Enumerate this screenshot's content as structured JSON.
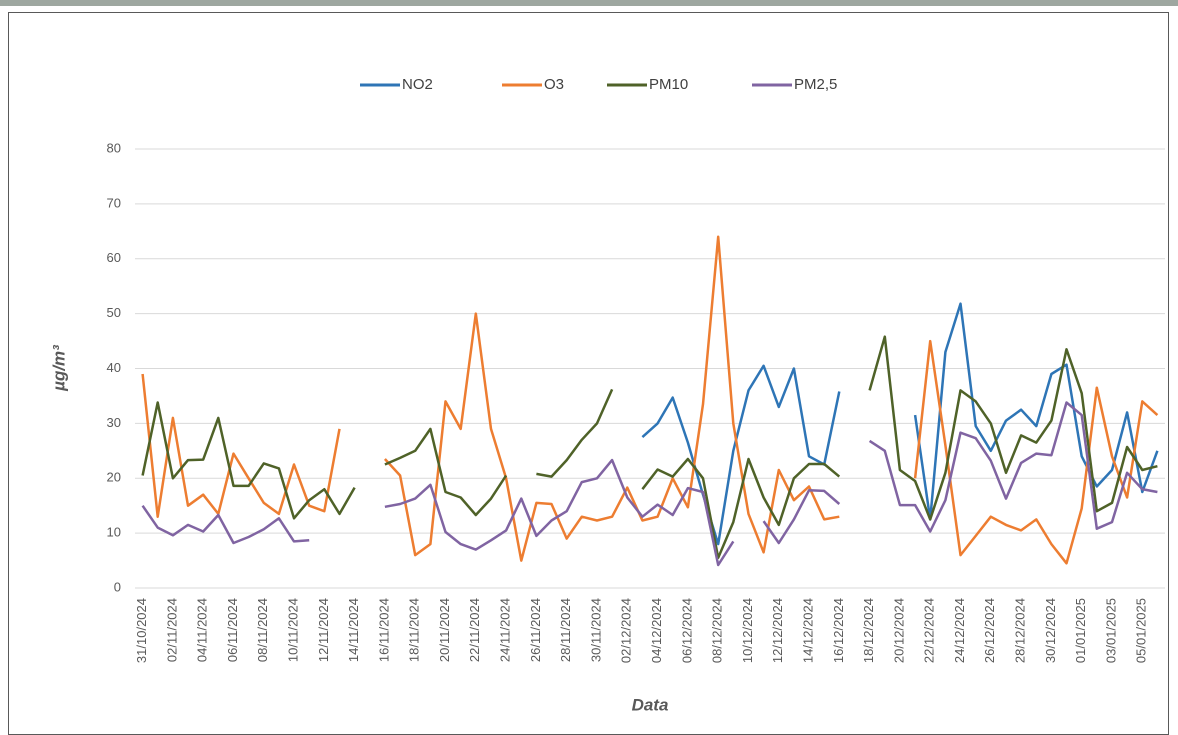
{
  "chart_data": {
    "type": "line",
    "x_label": "Data",
    "y_label": "µg/m³",
    "categories": [
      "31/10/2024",
      null,
      "02/11/2024",
      null,
      "04/11/2024",
      null,
      "06/11/2024",
      null,
      "08/11/2024",
      null,
      "10/11/2024",
      null,
      "12/11/2024",
      null,
      "14/11/2024",
      null,
      "16/11/2024",
      null,
      "18/11/2024",
      null,
      "20/11/2024",
      null,
      "22/11/2024",
      null,
      "24/11/2024",
      null,
      "26/11/2024",
      null,
      "28/11/2024",
      null,
      "30/11/2024",
      null,
      "02/12/2024",
      null,
      "04/12/2024",
      null,
      "06/12/2024",
      null,
      "08/12/2024",
      null,
      "10/12/2024",
      null,
      "12/12/2024",
      null,
      "14/12/2024",
      null,
      "16/12/2024",
      null,
      "18/12/2024",
      null,
      "20/12/2024",
      null,
      "22/12/2024",
      null,
      "24/12/2024",
      null,
      "26/12/2024",
      null,
      "28/12/2024",
      null,
      "30/12/2024",
      null,
      "01/01/2025",
      null,
      "03/01/2025",
      null,
      "05/01/2025",
      null
    ],
    "series": [
      {
        "name": "NO2",
        "color": "#2e75b6",
        "values": [
          null,
          null,
          null,
          null,
          null,
          null,
          null,
          null,
          null,
          null,
          null,
          null,
          null,
          null,
          null,
          null,
          null,
          null,
          null,
          null,
          null,
          null,
          null,
          null,
          null,
          null,
          null,
          null,
          null,
          null,
          null,
          null,
          null,
          27.5,
          30,
          34.7,
          26.5,
          17,
          8,
          25,
          36,
          40.5,
          33,
          40,
          24,
          22.5,
          35.8,
          null,
          null,
          null,
          null,
          31.5,
          12.5,
          43,
          51.8,
          29.5,
          25,
          30.5,
          32.5,
          29.5,
          39,
          40.7,
          24,
          18.5,
          21.5,
          32,
          17.5,
          25
        ]
      },
      {
        "name": "O3",
        "color": "#ed7d31",
        "values": [
          39,
          13,
          31,
          15,
          17,
          13.5,
          24.5,
          20,
          15.5,
          13.5,
          22.5,
          15,
          14,
          29,
          null,
          null,
          23.5,
          20.5,
          6,
          8,
          34,
          29,
          50,
          29,
          20,
          5,
          15.5,
          15.3,
          9,
          13,
          12.3,
          13,
          18.3,
          12.3,
          13,
          20,
          14.7,
          33.5,
          64,
          30,
          13.5,
          6.5,
          21.5,
          16,
          18.5,
          12.5,
          13,
          null,
          null,
          null,
          null,
          20,
          45,
          26,
          6,
          9.5,
          13,
          11.5,
          10.5,
          12.5,
          8,
          4.5,
          14.5,
          36.5,
          24,
          16.5,
          34,
          31.5
        ]
      },
      {
        "name": "PM10",
        "color": "#4f6228",
        "values": [
          20.5,
          33.8,
          20,
          23.3,
          23.4,
          31,
          18.6,
          18.6,
          22.7,
          21.8,
          12.7,
          16,
          18,
          13.5,
          18.3,
          null,
          22.5,
          23.7,
          25,
          29,
          17.5,
          16.5,
          13.3,
          16.3,
          20.5,
          null,
          20.8,
          20.3,
          23.3,
          27,
          30,
          36.2,
          null,
          18,
          21.6,
          20.3,
          23.5,
          20,
          5.5,
          12,
          23.5,
          16.5,
          11.5,
          20,
          22.6,
          22.6,
          20.3,
          null,
          36,
          45.8,
          21.5,
          19.5,
          12.5,
          21,
          36,
          34,
          30,
          21,
          27.8,
          26.5,
          30.5,
          43.5,
          35.5,
          14,
          15.5,
          25.7,
          21.5,
          22.2
        ]
      },
      {
        "name": "PM2,5",
        "color": "#8064a2",
        "values": [
          15,
          11,
          9.6,
          11.5,
          10.3,
          13.3,
          8.2,
          9.3,
          10.7,
          12.7,
          8.5,
          8.7,
          null,
          null,
          null,
          null,
          14.8,
          15.3,
          16.3,
          18.8,
          10.2,
          8,
          7,
          8.7,
          10.5,
          16.3,
          9.5,
          12.3,
          14,
          19.3,
          20,
          23.3,
          16.5,
          13,
          15.2,
          13.3,
          18.2,
          17.5,
          4.2,
          8.5,
          null,
          12.2,
          8.2,
          12.5,
          17.8,
          17.7,
          15.3,
          null,
          26.8,
          25,
          15.1,
          15.1,
          10.3,
          16,
          28.3,
          27.3,
          23.2,
          16.3,
          22.8,
          24.5,
          24.2,
          33.8,
          31.5,
          10.8,
          12,
          21,
          18,
          17.5
        ]
      }
    ],
    "ylim": [
      0,
      80
    ],
    "yticks": [
      0,
      10,
      20,
      30,
      40,
      50,
      60,
      70,
      80
    ],
    "grid": true,
    "legend": "top"
  }
}
